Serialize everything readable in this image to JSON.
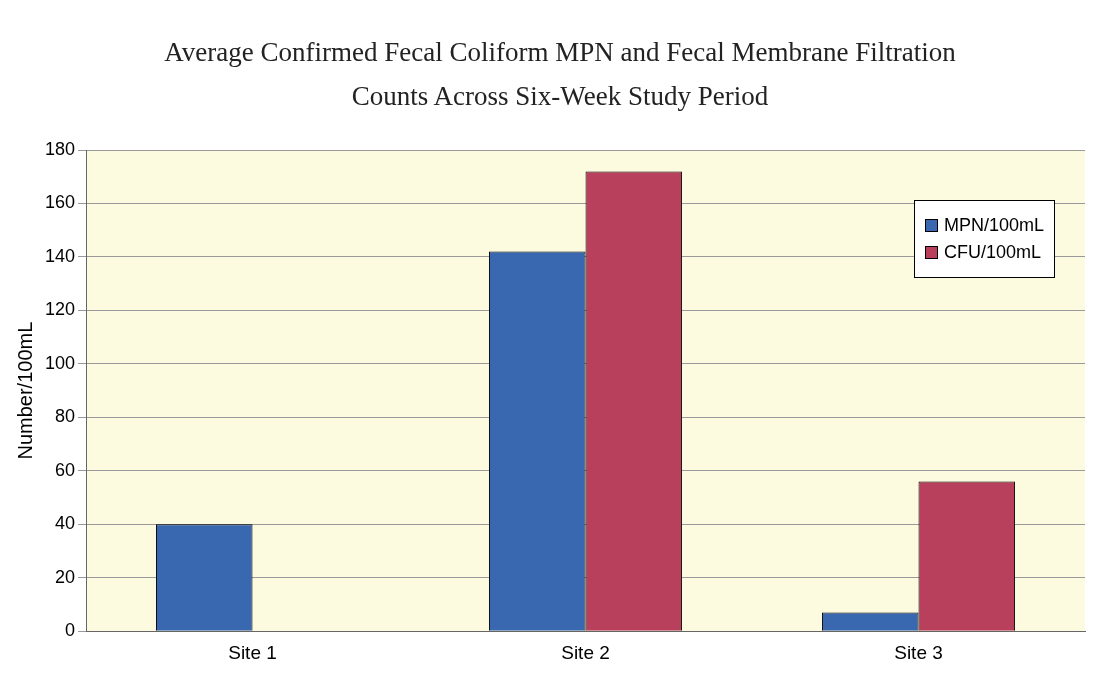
{
  "chart_data": {
    "type": "bar",
    "title": "Average Confirmed Fecal Coliform MPN and Fecal Membrane Filtration Counts Across Six-Week Study Period",
    "ylabel": "Number/100mL",
    "categories": [
      "Site 1",
      "Site 2",
      "Site 3"
    ],
    "series": [
      {
        "name": "MPN/100mL",
        "color": "#3a68b0",
        "values": [
          40,
          142,
          7
        ]
      },
      {
        "name": "CFU/100mL",
        "color": "#b8405c",
        "values": [
          0,
          172,
          56
        ]
      }
    ],
    "ylim": [
      0,
      180
    ],
    "yticks": [
      0,
      20,
      40,
      60,
      80,
      100,
      120,
      140,
      160,
      180
    ],
    "grid": "y",
    "legend": "top right"
  }
}
